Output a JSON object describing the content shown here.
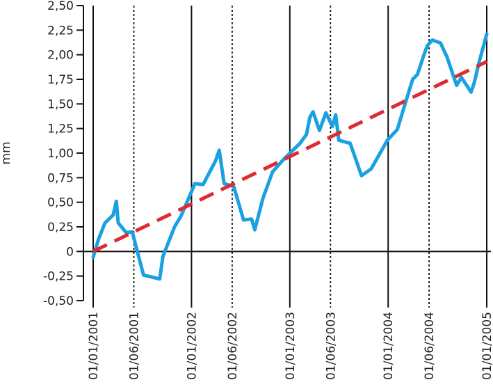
{
  "chart_data": {
    "type": "line",
    "title": "",
    "xlabel": "",
    "ylabel": "mm",
    "ylim": [
      -0.5,
      2.5
    ],
    "y_ticks": [
      2.5,
      2.25,
      2.0,
      1.75,
      1.5,
      1.25,
      1.0,
      0.75,
      0.5,
      0.25,
      0,
      -0.25,
      -0.5
    ],
    "y_tick_labels": [
      "2,50",
      "2,25",
      "2,00",
      "1,75",
      "1,50",
      "1,25",
      "1,00",
      "0,75",
      "0,50",
      "0,25",
      "0",
      "-0,25",
      "-0,50"
    ],
    "x_ticks": [
      {
        "label": "01/01/2001",
        "date": "2001-01-01",
        "line": "solid"
      },
      {
        "label": "01/06/2001",
        "date": "2001-06-01",
        "line": "dotted"
      },
      {
        "label": "01/01/2002",
        "date": "2002-01-01",
        "line": "solid"
      },
      {
        "label": "01/06/2002",
        "date": "2002-06-01",
        "line": "dotted"
      },
      {
        "label": "01/01/2003",
        "date": "2003-01-01",
        "line": "solid"
      },
      {
        "label": "01/06/2003",
        "date": "2003-06-01",
        "line": "dotted"
      },
      {
        "label": "01/01/2004",
        "date": "2004-01-01",
        "line": "solid"
      },
      {
        "label": "01/06/2004",
        "date": "2004-06-01",
        "line": "dotted"
      },
      {
        "label": "01/01/2005",
        "date": "2005-01-01",
        "line": "solid"
      }
    ],
    "series": [
      {
        "color": "#1ba1e2",
        "style": "solid",
        "points": [
          [
            "2001-01-01",
            -0.06
          ],
          [
            "2001-01-20",
            0.12
          ],
          [
            "2001-02-14",
            0.29
          ],
          [
            "2001-03-16",
            0.37
          ],
          [
            "2001-03-28",
            0.51
          ],
          [
            "2001-04-04",
            0.29
          ],
          [
            "2001-05-04",
            0.19
          ],
          [
            "2001-05-26",
            0.2
          ],
          [
            "2001-06-11",
            0.03
          ],
          [
            "2001-07-07",
            -0.24
          ],
          [
            "2001-08-06",
            -0.26
          ],
          [
            "2001-09-05",
            -0.28
          ],
          [
            "2001-09-17",
            -0.05
          ],
          [
            "2001-10-30",
            0.25
          ],
          [
            "2001-11-23",
            0.36
          ],
          [
            "2002-01-14",
            0.69
          ],
          [
            "2002-02-13",
            0.68
          ],
          [
            "2002-03-31",
            0.92
          ],
          [
            "2002-04-14",
            1.03
          ],
          [
            "2002-05-02",
            0.69
          ],
          [
            "2002-06-07",
            0.66
          ],
          [
            "2002-07-13",
            0.32
          ],
          [
            "2002-08-12",
            0.33
          ],
          [
            "2002-08-24",
            0.22
          ],
          [
            "2002-09-23",
            0.54
          ],
          [
            "2002-10-29",
            0.81
          ],
          [
            "2002-12-10",
            0.94
          ],
          [
            "2003-02-08",
            1.1
          ],
          [
            "2003-03-04",
            1.19
          ],
          [
            "2003-03-16",
            1.36
          ],
          [
            "2003-03-28",
            1.42
          ],
          [
            "2003-04-21",
            1.23
          ],
          [
            "2003-05-15",
            1.41
          ],
          [
            "2003-06-08",
            1.27
          ],
          [
            "2003-06-20",
            1.39
          ],
          [
            "2003-07-02",
            1.13
          ],
          [
            "2003-08-13",
            1.1
          ],
          [
            "2003-09-24",
            0.77
          ],
          [
            "2003-10-30",
            0.84
          ],
          [
            "2003-12-29",
            1.13
          ],
          [
            "2004-02-04",
            1.24
          ],
          [
            "2004-03-06",
            1.52
          ],
          [
            "2004-04-01",
            1.75
          ],
          [
            "2004-04-19",
            1.8
          ],
          [
            "2004-05-13",
            2.0
          ],
          [
            "2004-05-25",
            2.09
          ],
          [
            "2004-06-13",
            2.15
          ],
          [
            "2004-07-13",
            2.12
          ],
          [
            "2004-08-06",
            1.98
          ],
          [
            "2004-09-11",
            1.69
          ],
          [
            "2004-09-29",
            1.77
          ],
          [
            "2004-11-04",
            1.62
          ],
          [
            "2004-11-16",
            1.72
          ],
          [
            "2004-12-04",
            1.93
          ],
          [
            "2005-01-01",
            2.21
          ]
        ]
      },
      {
        "color": "#e02a31",
        "style": "dashed",
        "points": [
          [
            "2001-01-01",
            0.0
          ],
          [
            "2005-01-01",
            1.93
          ]
        ]
      }
    ],
    "grid": false
  }
}
